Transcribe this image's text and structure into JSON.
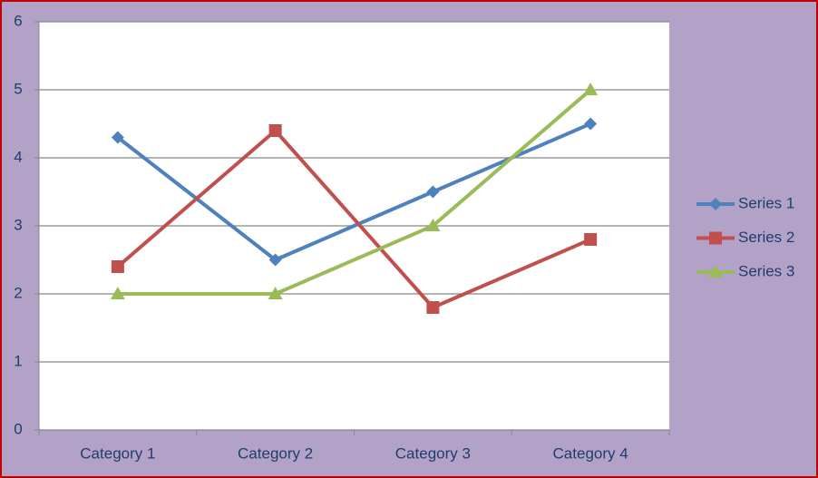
{
  "chart_data": {
    "type": "line",
    "categories": [
      "Category 1",
      "Category 2",
      "Category 3",
      "Category 4"
    ],
    "series": [
      {
        "name": "Series 1",
        "color": "#4f81bd",
        "marker": "diamond",
        "values": [
          4.3,
          2.5,
          3.5,
          4.5
        ]
      },
      {
        "name": "Series 2",
        "color": "#c0504d",
        "marker": "square",
        "values": [
          2.4,
          4.4,
          1.8,
          2.8
        ]
      },
      {
        "name": "Series 3",
        "color": "#9bbb59",
        "marker": "triangle",
        "values": [
          2,
          2,
          3,
          5
        ]
      }
    ],
    "ylim": [
      0,
      6
    ],
    "yticks": [
      0,
      1,
      2,
      3,
      4,
      5,
      6
    ],
    "grid": true,
    "legend": "right"
  }
}
